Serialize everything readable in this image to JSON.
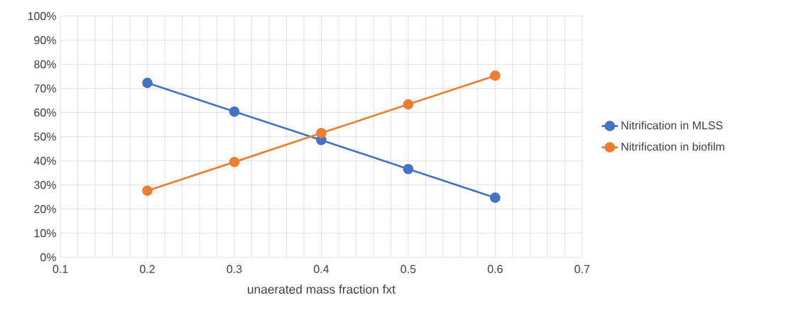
{
  "chart_data": {
    "type": "line",
    "xlabel": "unaerated mass fraction fxt",
    "x": [
      0.2,
      0.3,
      0.4,
      0.5,
      0.6
    ],
    "series": [
      {
        "name": "Nitrification in MLSS",
        "color": "#4472c4",
        "values": [
          72.3,
          60.4,
          48.6,
          36.6,
          24.7
        ]
      },
      {
        "name": "Nitrification in biofilm",
        "color": "#ed7d31",
        "values": [
          27.6,
          39.5,
          51.5,
          63.4,
          75.3
        ]
      }
    ],
    "xlim": [
      0.1,
      0.7
    ],
    "xticks": [
      0.1,
      0.2,
      0.3,
      0.4,
      0.5,
      0.6,
      0.7
    ],
    "ylim": [
      0,
      100
    ],
    "yticks": [
      {
        "value": 0,
        "label": "0%"
      },
      {
        "value": 10,
        "label": "10%"
      },
      {
        "value": 20,
        "label": "20%"
      },
      {
        "value": 30,
        "label": "30%"
      },
      {
        "value": 40,
        "label": "40%"
      },
      {
        "value": 50,
        "label": "50%"
      },
      {
        "value": 60,
        "label": "60%"
      },
      {
        "value": 70,
        "label": "70%"
      },
      {
        "value": 80,
        "label": "80%"
      },
      {
        "value": 90,
        "label": "90%"
      },
      {
        "value": 100,
        "label": "100%"
      }
    ],
    "grid": true,
    "legend": "right",
    "marker": "circle",
    "line_style": "solid"
  }
}
